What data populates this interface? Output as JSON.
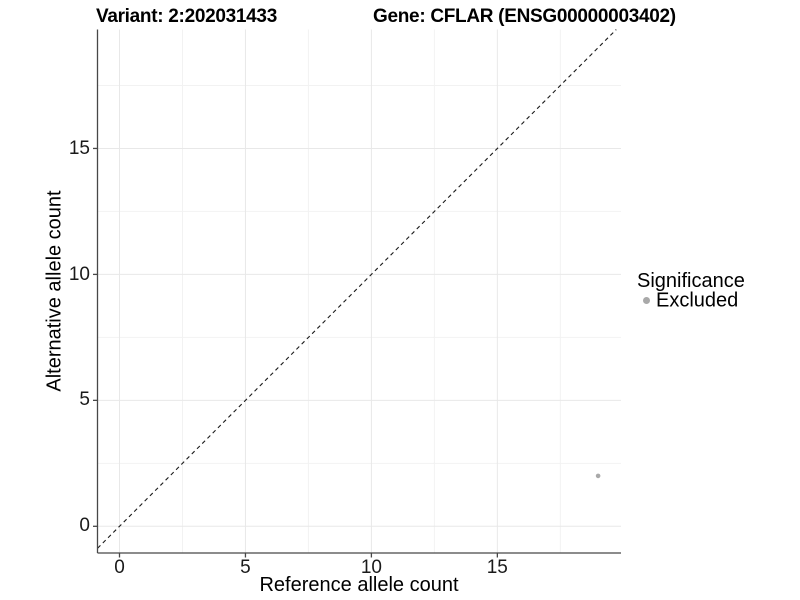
{
  "header": {
    "variant_title": "Variant: 2:202031433",
    "gene_title": "Gene: CFLAR (ENSG00000003402)"
  },
  "chart_data": {
    "type": "scatter",
    "title_left": "Variant: 2:202031433",
    "title_right": "Gene: CFLAR (ENSG00000003402)",
    "xlabel": "Reference allele count",
    "ylabel": "Alternative allele count",
    "x_ticks": [
      0,
      5,
      10,
      15
    ],
    "y_ticks": [
      0,
      5,
      10,
      15
    ],
    "x_minor_ticks": [
      2.5,
      7.5,
      12.5,
      17.5
    ],
    "y_minor_ticks": [
      2.5,
      7.5,
      12.5,
      17.5
    ],
    "xlim": [
      -0.87,
      19.9
    ],
    "ylim": [
      -1.05,
      19.72
    ],
    "grid": "major and minor, light gray, on white panel",
    "reference_line": {
      "slope": 1,
      "intercept": 0,
      "style": "dashed",
      "color": "#1a1a1a"
    },
    "series": [
      {
        "name": "Excluded",
        "color": "#a9a9a9",
        "points": [
          {
            "x": 19,
            "y": 2
          }
        ]
      }
    ],
    "legend": {
      "title": "Significance",
      "position": "right",
      "items": [
        {
          "label": "Excluded",
          "color": "#a9a9a9",
          "marker": "circle"
        }
      ]
    }
  },
  "colors": {
    "background": "#ffffff",
    "axis_line": "#474747",
    "grid_major": "#e8e8e8",
    "grid_minor": "#f2f2f2",
    "point_gray": "#a9a9a9",
    "dashed_line": "#1a1a1a",
    "text": "#000000"
  }
}
